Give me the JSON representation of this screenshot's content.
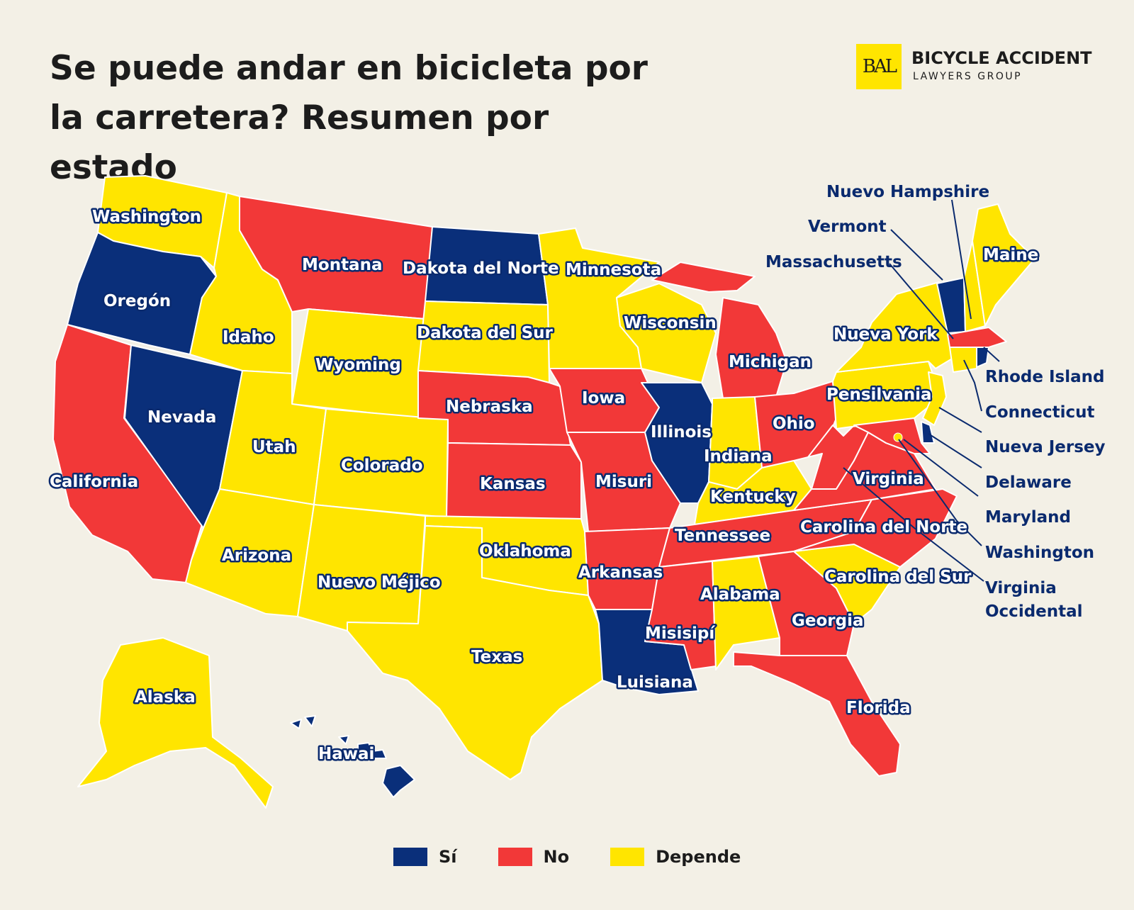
{
  "title": "Se puede andar en bicicleta por la carretera? Resumen por estado",
  "logo": {
    "mark": "BAL",
    "name": "BICYCLE ACCIDENT",
    "subtitle": "LAWYERS GROUP"
  },
  "colors": {
    "si": "#0a2f7a",
    "no": "#f23838",
    "depende": "#ffe500"
  },
  "legend": [
    {
      "key": "si",
      "label": "Sí",
      "color": "#0a2f7a"
    },
    {
      "key": "no",
      "label": "No",
      "color": "#f23838"
    },
    {
      "key": "depende",
      "label": "Depende",
      "color": "#ffe500"
    }
  ],
  "states": {
    "washington": {
      "label": "Washington",
      "status": "depende"
    },
    "oregon": {
      "label": "Oregón",
      "status": "si"
    },
    "california": {
      "label": "California",
      "status": "no"
    },
    "nevada": {
      "label": "Nevada",
      "status": "si"
    },
    "idaho": {
      "label": "Idaho",
      "status": "depende"
    },
    "montana": {
      "label": "Montana",
      "status": "no"
    },
    "wyoming": {
      "label": "Wyoming",
      "status": "depende"
    },
    "utah": {
      "label": "Utah",
      "status": "depende"
    },
    "arizona": {
      "label": "Arizona",
      "status": "depende"
    },
    "colorado": {
      "label": "Colorado",
      "status": "depende"
    },
    "nuevo_mejico": {
      "label": "Nuevo Méjico",
      "status": "depende"
    },
    "dakota_norte": {
      "label": "Dakota del Norte",
      "status": "si"
    },
    "dakota_sur": {
      "label": "Dakota del Sur",
      "status": "depende"
    },
    "nebraska": {
      "label": "Nebraska",
      "status": "no"
    },
    "kansas": {
      "label": "Kansas",
      "status": "no"
    },
    "oklahoma": {
      "label": "Oklahoma",
      "status": "depende"
    },
    "texas": {
      "label": "Texas",
      "status": "depende"
    },
    "minnesota": {
      "label": "Minnesota",
      "status": "depende"
    },
    "iowa": {
      "label": "Iowa",
      "status": "no"
    },
    "misuri": {
      "label": "Misuri",
      "status": "no"
    },
    "arkansas": {
      "label": "Arkansas",
      "status": "no"
    },
    "luisiana": {
      "label": "Luisiana",
      "status": "si"
    },
    "wisconsin": {
      "label": "Wisconsin",
      "status": "depende"
    },
    "illinois": {
      "label": "Illinois",
      "status": "si"
    },
    "michigan": {
      "label": "Michigan",
      "status": "no"
    },
    "indiana": {
      "label": "Indiana",
      "status": "depende"
    },
    "ohio": {
      "label": "Ohio",
      "status": "no"
    },
    "kentucky": {
      "label": "Kentucky",
      "status": "depende"
    },
    "tennessee": {
      "label": "Tennessee",
      "status": "no"
    },
    "misisipi": {
      "label": "Misisipí",
      "status": "no"
    },
    "alabama": {
      "label": "Alabama",
      "status": "depende"
    },
    "georgia": {
      "label": "Georgia",
      "status": "no"
    },
    "florida": {
      "label": "Florida",
      "status": "no"
    },
    "carolina_sur": {
      "label": "Carolina del Sur",
      "status": "depende"
    },
    "carolina_norte": {
      "label": "Carolina del Norte",
      "status": "no"
    },
    "virginia": {
      "label": "Virginia",
      "status": "no"
    },
    "virginia_occidental": {
      "label": "Virginia Occidental",
      "status": "no"
    },
    "pensilvania": {
      "label": "Pensilvania",
      "status": "depende"
    },
    "nueva_york": {
      "label": "Nueva York",
      "status": "depende"
    },
    "maine": {
      "label": "Maine",
      "status": "depende"
    },
    "vermont": {
      "label": "Vermont",
      "status": "si"
    },
    "nuevo_hampshire": {
      "label": "Nuevo Hampshire",
      "status": "depende"
    },
    "massachusetts": {
      "label": "Massachusetts",
      "status": "no"
    },
    "rhode_island": {
      "label": "Rhode Island",
      "status": "si"
    },
    "connecticut": {
      "label": "Connecticut",
      "status": "depende"
    },
    "nueva_jersey": {
      "label": "Nueva Jersey",
      "status": "depende"
    },
    "delaware": {
      "label": "Delaware",
      "status": "si"
    },
    "maryland": {
      "label": "Maryland",
      "status": "no"
    },
    "washington_dc": {
      "label": "Washington",
      "status": "depende"
    },
    "alaska": {
      "label": "Alaska",
      "status": "depende"
    },
    "hawai": {
      "label": "Hawai",
      "status": "si"
    }
  },
  "callouts": {
    "virginia_occidental_line1": "Virginia",
    "virginia_occidental_line2": "Occidental"
  }
}
